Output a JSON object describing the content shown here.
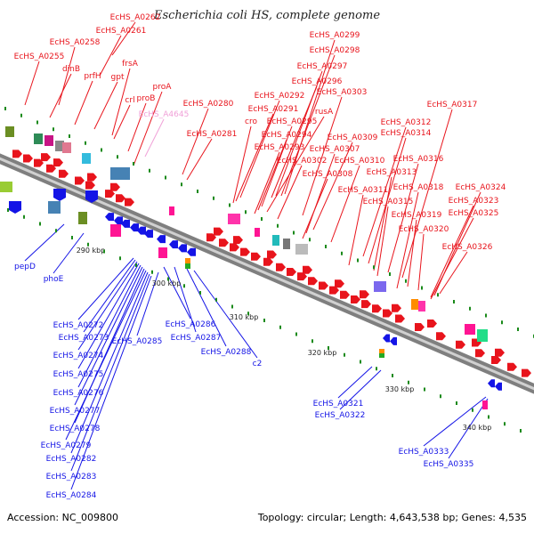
{
  "title": "Escherichia coli HS, complete genome",
  "footer": {
    "accession": "Accession: NC_009800",
    "summary": "Topology: circular; Length: 4,643,538 bp; Genes: 4,535"
  },
  "colors": {
    "forward": "#e8141c",
    "reverse": "#1414e6",
    "highlight": "#f0a0d8",
    "backbone": "#7f7f7f",
    "tick": "#1a8a1a"
  },
  "kbp_labels": [
    "290 kbp",
    "300 kbp",
    "310 kbp",
    "320 kbp",
    "330 kbp",
    "340 kbp"
  ],
  "top_labels": [
    "EcHS_A0262",
    "EcHS_A0261",
    "EcHS_A0258",
    "EcHS_A0255",
    "dinB",
    "prfH",
    "gpt",
    "frsA",
    "crl",
    "proB",
    "proA",
    "EcHS_A4645",
    "EcHS_A0280",
    "EcHS_A0281",
    "EcHS_A0299",
    "EcHS_A0298",
    "EcHS_A0297",
    "EcHS_A0296",
    "EcHS_A0292",
    "EcHS_A0303",
    "EcHS_A0291",
    "rusA",
    "cro",
    "EcHS_A0295",
    "EcHS_A0294",
    "EcHS_A0293",
    "EcHS_A0302",
    "EcHS_A0309",
    "EcHS_A0307",
    "EcHS_A0308",
    "EcHS_A0310",
    "EcHS_A0312",
    "EcHS_A0314",
    "EcHS_A0317",
    "EcHS_A0316",
    "EcHS_A0313",
    "EcHS_A0311",
    "EcHS_A0315",
    "EcHS_A0318",
    "EcHS_A0319",
    "EcHS_A0320",
    "EcHS_A0324",
    "EcHS_A0323",
    "EcHS_A0325",
    "EcHS_A0326"
  ],
  "bottom_labels": [
    "pepD",
    "phoE",
    "EcHS_A0272",
    "EcHS_A0273",
    "EcHS_A0274",
    "EcHS_A0275",
    "EcHS_A0276",
    "EcHS_A0277",
    "EcHS_A0278",
    "EcHS_A0279",
    "EcHS_A0282",
    "EcHS_A0283",
    "EcHS_A0284",
    "EcHS_A0285",
    "EcHS_A0286",
    "EcHS_A0287",
    "EcHS_A0288",
    "c2",
    "EcHS_A0321",
    "EcHS_A0322",
    "EcHS_A0333",
    "EcHS_A0335"
  ]
}
